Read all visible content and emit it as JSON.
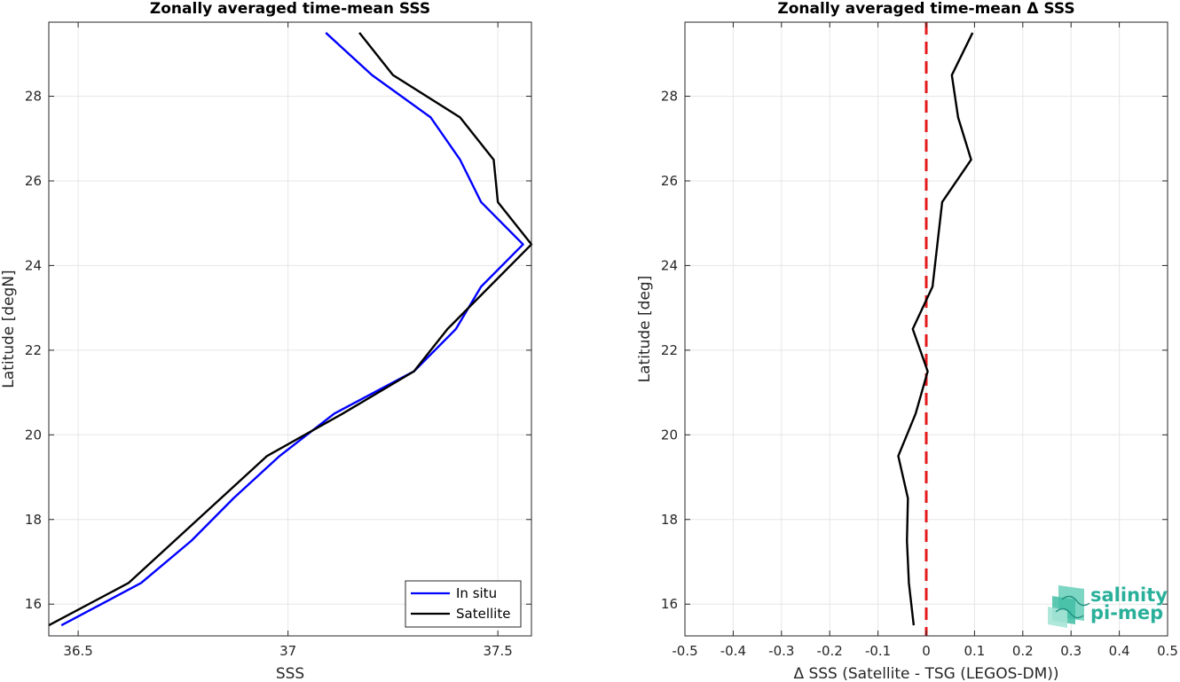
{
  "chart_data": [
    {
      "type": "line",
      "title": "Zonally averaged time-mean SSS",
      "xlabel": "SSS",
      "ylabel": "Latitude [degN]",
      "xlim": [
        36.43,
        37.58
      ],
      "ylim": [
        15.25,
        29.75
      ],
      "xticks": [
        36.5,
        37,
        37.5
      ],
      "xtick_labels": [
        "36.5",
        "37",
        "37.5"
      ],
      "yticks": [
        16,
        18,
        20,
        22,
        24,
        26,
        28
      ],
      "ytick_labels": [
        "16",
        "18",
        "20",
        "22",
        "24",
        "26",
        "28"
      ],
      "grid": true,
      "legend_position": "bottom-right",
      "series": [
        {
          "name": "In situ",
          "color": "#0000ff",
          "x": [
            36.46,
            36.65,
            36.77,
            36.87,
            36.98,
            37.11,
            37.3,
            37.4,
            37.46,
            37.56,
            37.46,
            37.41,
            37.34,
            37.2,
            37.09
          ],
          "y": [
            15.5,
            16.5,
            17.5,
            18.5,
            19.5,
            20.5,
            21.5,
            22.5,
            23.5,
            24.5,
            25.5,
            26.5,
            27.5,
            28.5,
            29.5
          ]
        },
        {
          "name": "Satellite",
          "color": "#000000",
          "x": [
            36.43,
            36.62,
            36.73,
            36.84,
            36.95,
            37.13,
            37.3,
            37.38,
            37.48,
            37.58,
            37.5,
            37.49,
            37.41,
            37.25,
            37.17
          ],
          "y": [
            15.5,
            16.5,
            17.5,
            18.5,
            19.5,
            20.5,
            21.5,
            22.5,
            23.5,
            24.5,
            25.5,
            26.5,
            27.5,
            28.5,
            29.5
          ]
        }
      ]
    },
    {
      "type": "line",
      "title": "Zonally averaged time-mean Δ SSS",
      "xlabel": "Δ SSS (Satellite - TSG (LEGOS-DM))",
      "ylabel": "Latitude [deg]",
      "xlim": [
        -0.5,
        0.5
      ],
      "ylim": [
        15.25,
        29.75
      ],
      "xticks": [
        -0.5,
        -0.4,
        -0.3,
        -0.2,
        -0.1,
        0,
        0.1,
        0.2,
        0.3,
        0.4,
        0.5
      ],
      "xtick_labels": [
        "-0.5",
        "-0.4",
        "-0.3",
        "-0.2",
        "-0.1",
        "0",
        "0.1",
        "0.2",
        "0.3",
        "0.4",
        "0.5"
      ],
      "yticks": [
        16,
        18,
        20,
        22,
        24,
        26,
        28
      ],
      "ytick_labels": [
        "16",
        "18",
        "20",
        "22",
        "24",
        "26",
        "28"
      ],
      "grid": true,
      "reference_line": {
        "x": 0,
        "color": "#e41a1c",
        "style": "dashed"
      },
      "series": [
        {
          "color": "#000000",
          "x": [
            -0.026,
            -0.036,
            -0.04,
            -0.038,
            -0.058,
            -0.022,
            0.003,
            -0.028,
            0.013,
            0.023,
            0.033,
            0.093,
            0.066,
            0.053,
            0.096
          ],
          "y": [
            15.5,
            16.5,
            17.5,
            18.5,
            19.5,
            20.5,
            21.5,
            22.5,
            23.5,
            24.5,
            25.5,
            26.5,
            27.5,
            28.5,
            29.5
          ]
        }
      ]
    }
  ],
  "logo": {
    "line1": "salinity",
    "line2": "pi-mep",
    "color": "#2ab09a"
  }
}
